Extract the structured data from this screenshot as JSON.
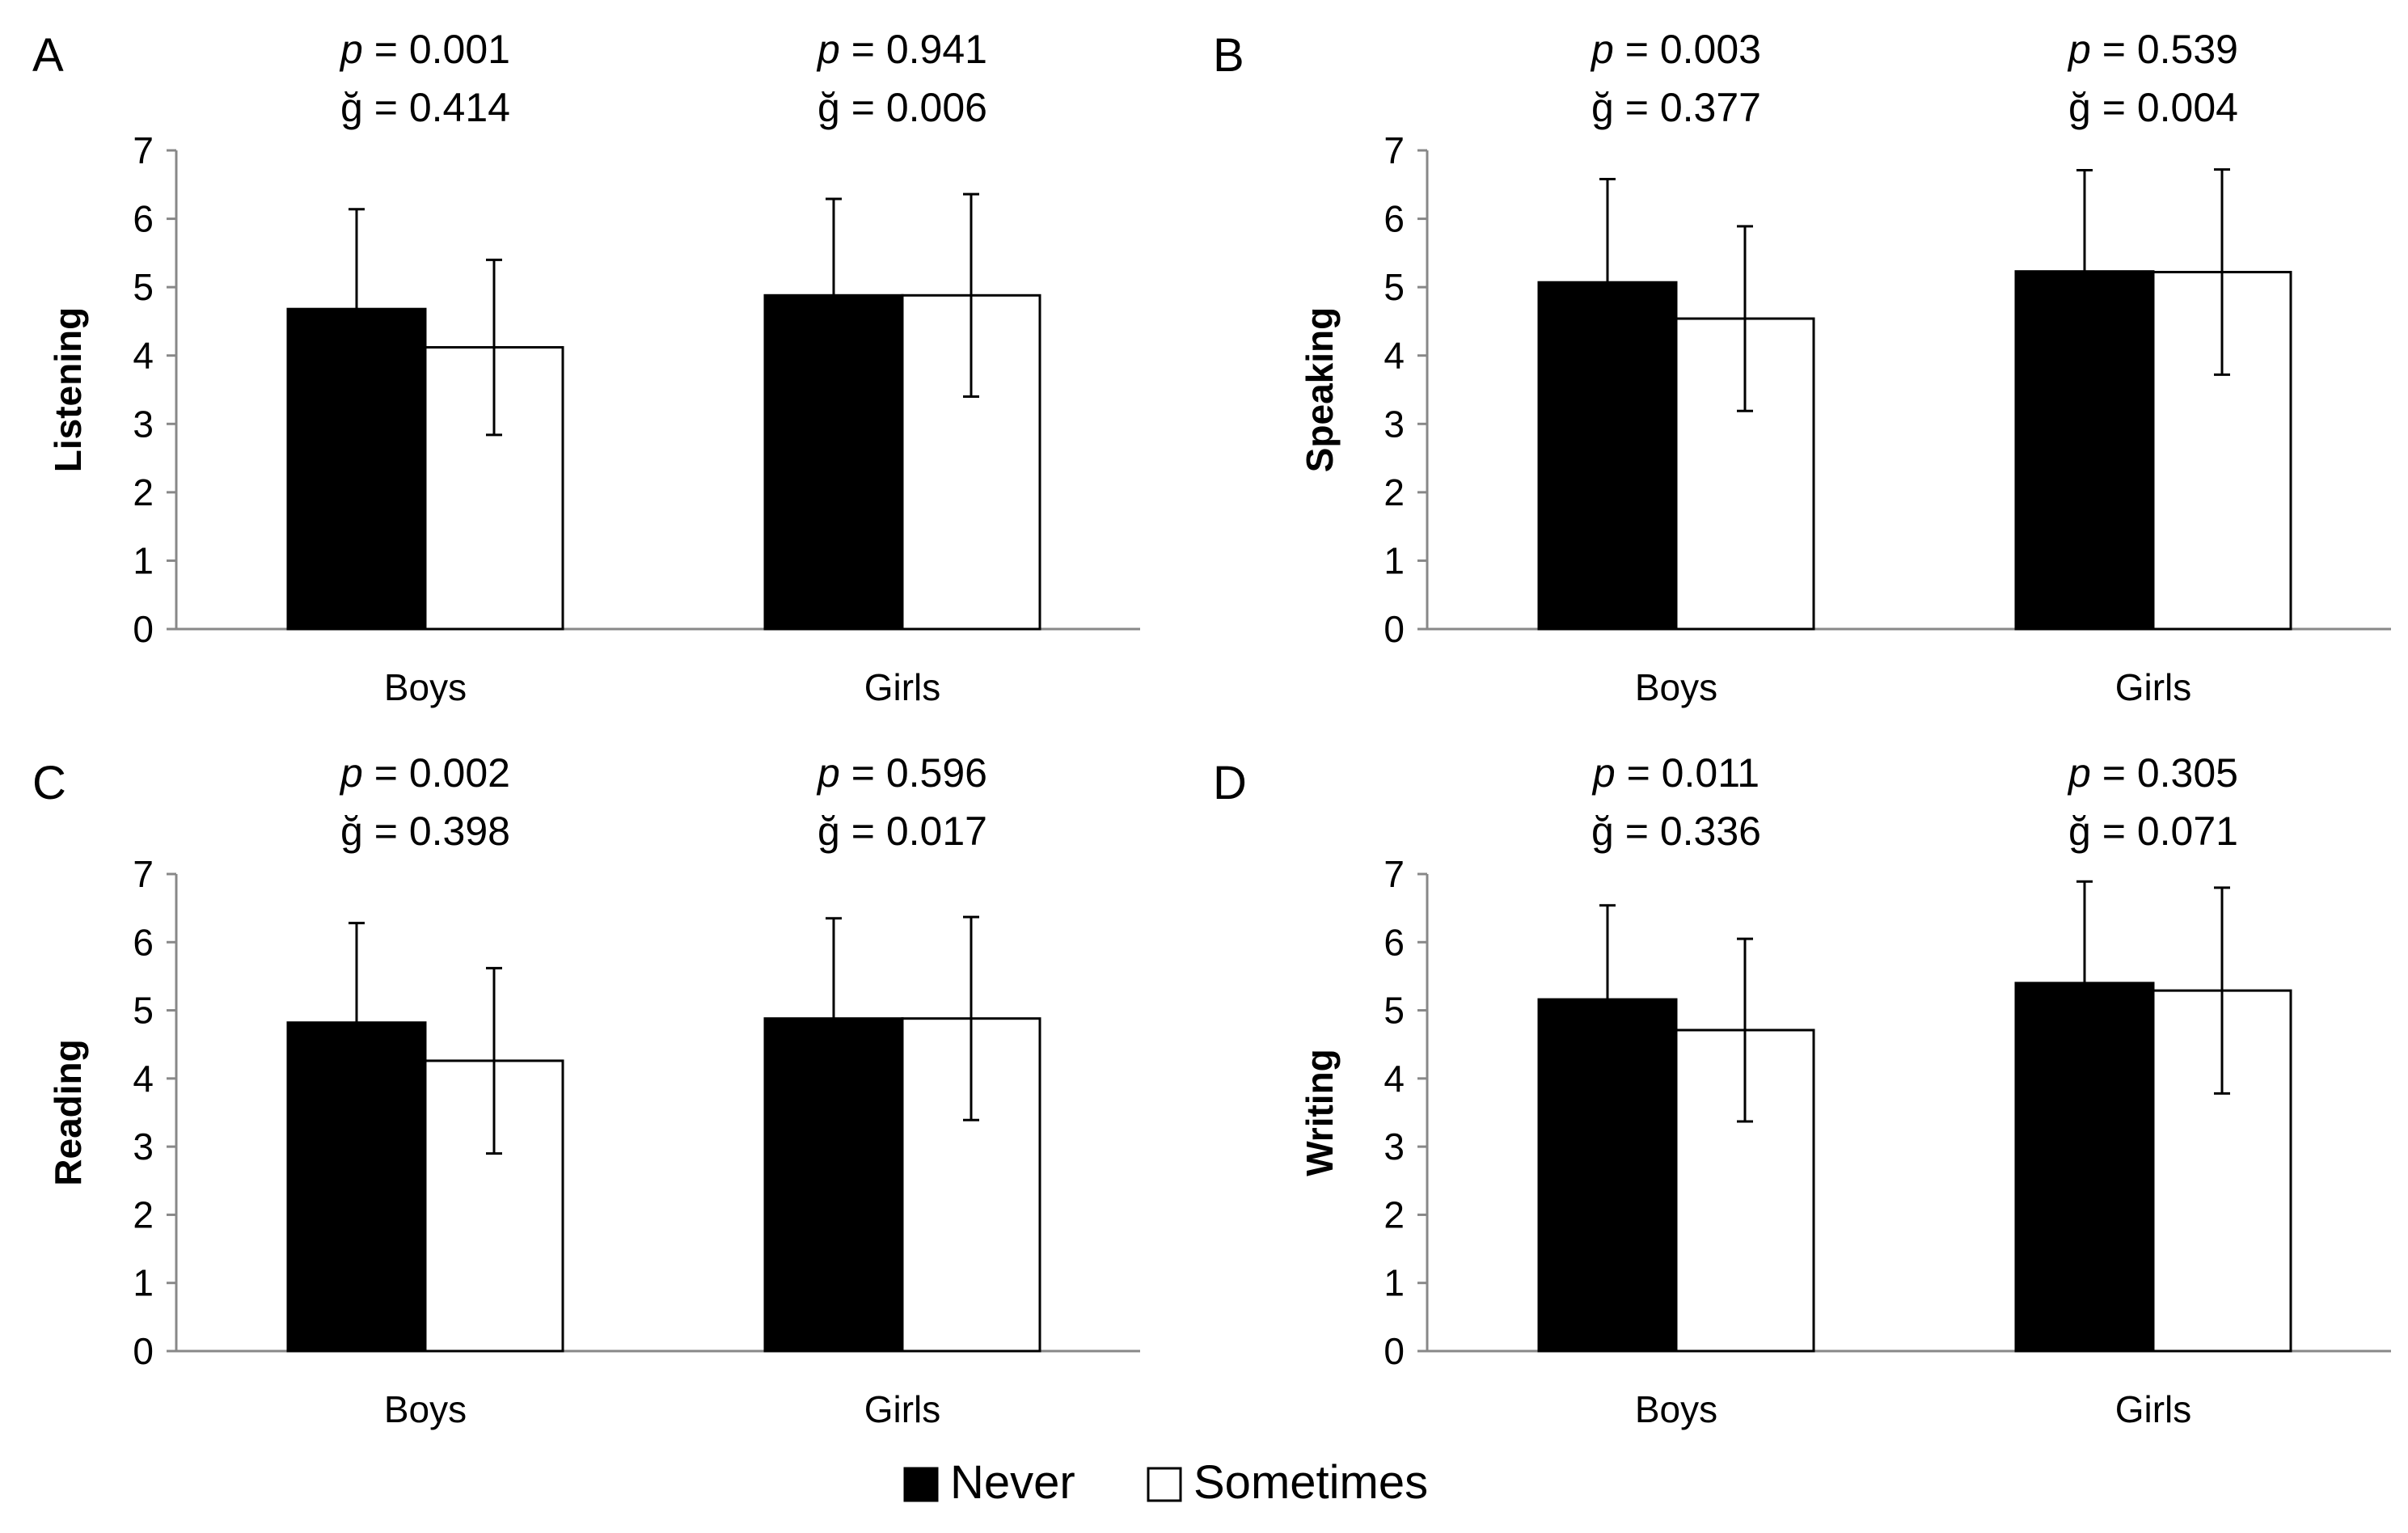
{
  "legend": {
    "never_label": "Never",
    "sometimes_label": "Sometimes",
    "never_color": "#000000",
    "sometimes_color": "#ffffff"
  },
  "chart_data": [
    {
      "panel": "A",
      "type": "bar",
      "ylabel": "Listening",
      "categories": [
        "Boys",
        "Girls"
      ],
      "ylim": [
        0,
        7
      ],
      "yticks": [
        "0",
        "1",
        "2",
        "3",
        "4",
        "5",
        "6",
        "7"
      ],
      "series": [
        {
          "name": "Never",
          "values": [
            4.68,
            4.88
          ],
          "errors": [
            1.46,
            1.41
          ]
        },
        {
          "name": "Sometimes",
          "values": [
            4.12,
            4.88
          ],
          "errors": [
            1.28,
            1.48
          ]
        }
      ],
      "annotations": [
        {
          "p_symbol": "p",
          "p_value": " = 0.001",
          "g_text": "ğ = 0.414"
        },
        {
          "p_symbol": "p",
          "p_value": " = 0.941",
          "g_text": "ğ = 0.006"
        }
      ]
    },
    {
      "panel": "B",
      "type": "bar",
      "ylabel": "Speaking",
      "categories": [
        "Boys",
        "Girls"
      ],
      "ylim": [
        0,
        7
      ],
      "yticks": [
        "0",
        "1",
        "2",
        "3",
        "4",
        "5",
        "6",
        "7"
      ],
      "series": [
        {
          "name": "Never",
          "values": [
            5.07,
            5.23
          ],
          "errors": [
            1.51,
            1.48
          ]
        },
        {
          "name": "Sometimes",
          "values": [
            4.54,
            5.22
          ],
          "errors": [
            1.35,
            1.5
          ]
        }
      ],
      "annotations": [
        {
          "p_symbol": "p",
          "p_value": " = 0.003",
          "g_text": "ğ = 0.377"
        },
        {
          "p_symbol": "p",
          "p_value": " = 0.539",
          "g_text": "ğ = 0.004"
        }
      ]
    },
    {
      "panel": "C",
      "type": "bar",
      "ylabel": "Reading",
      "categories": [
        "Boys",
        "Girls"
      ],
      "ylim": [
        0,
        7
      ],
      "yticks": [
        "0",
        "1",
        "2",
        "3",
        "4",
        "5",
        "6",
        "7"
      ],
      "series": [
        {
          "name": "Never",
          "values": [
            4.82,
            4.88
          ],
          "errors": [
            1.46,
            1.47
          ]
        },
        {
          "name": "Sometimes",
          "values": [
            4.26,
            4.88
          ],
          "errors": [
            1.36,
            1.49
          ]
        }
      ],
      "annotations": [
        {
          "p_symbol": "p",
          "p_value": " = 0.002",
          "g_text": "ğ = 0.398"
        },
        {
          "p_symbol": "p",
          "p_value": " = 0.596",
          "g_text": "ğ = 0.017"
        }
      ]
    },
    {
      "panel": "D",
      "type": "bar",
      "ylabel": "Writing",
      "categories": [
        "Boys",
        "Girls"
      ],
      "ylim": [
        0,
        7
      ],
      "yticks": [
        "0",
        "1",
        "2",
        "3",
        "4",
        "5",
        "6",
        "7"
      ],
      "series": [
        {
          "name": "Never",
          "values": [
            5.16,
            5.4
          ],
          "errors": [
            1.38,
            1.49
          ]
        },
        {
          "name": "Sometimes",
          "values": [
            4.71,
            5.29
          ],
          "errors": [
            1.34,
            1.51
          ]
        }
      ],
      "annotations": [
        {
          "p_symbol": "p",
          "p_value": " = 0.011",
          "g_text": "ğ = 0.336"
        },
        {
          "p_symbol": "p",
          "p_value": " = 0.305",
          "g_text": "ğ = 0.071"
        }
      ]
    }
  ]
}
